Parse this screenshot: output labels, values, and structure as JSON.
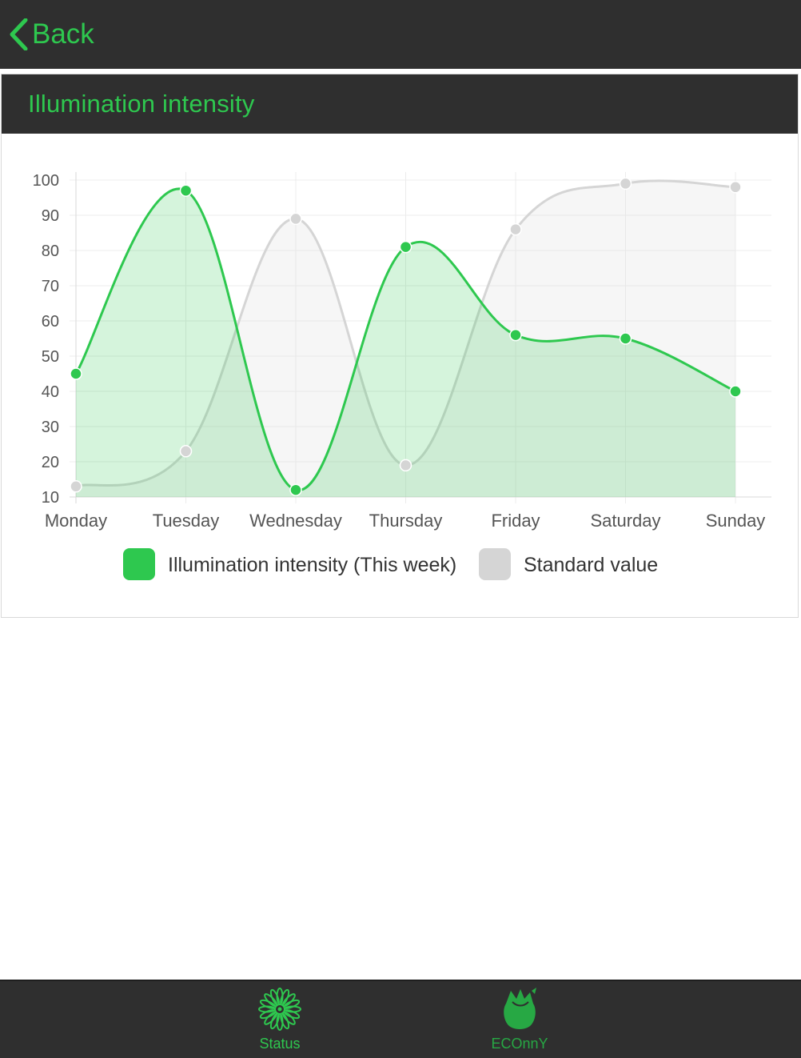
{
  "nav": {
    "back_label": "Back",
    "back_icon": "chevron-left-icon"
  },
  "card": {
    "title": "Illumination intensity"
  },
  "chart_data": {
    "type": "line",
    "smooth": true,
    "filled": true,
    "categories": [
      "Monday",
      "Tuesday",
      "Wednesday",
      "Thursday",
      "Friday",
      "Saturday",
      "Sunday"
    ],
    "series": [
      {
        "name": "Illumination intensity (This week)",
        "values": [
          45,
          97,
          12,
          81,
          56,
          55,
          40
        ],
        "color": "#2ec84f",
        "fill": "rgba(46,200,79,0.2)"
      },
      {
        "name": "Standard value",
        "values": [
          13,
          23,
          89,
          19,
          86,
          99,
          98
        ],
        "color": "#d5d5d5",
        "fill": "rgba(220,220,220,0.25)"
      }
    ],
    "ylim": [
      10,
      100
    ],
    "yticks": [
      100,
      90,
      80,
      70,
      60,
      50,
      40,
      30,
      20,
      10
    ],
    "grid": true,
    "legend": "bottom-center"
  },
  "tabs": [
    {
      "label": "Status",
      "icon": "flower-icon"
    },
    {
      "label": "ECOnnY",
      "icon": "rose-bud-icon"
    }
  ],
  "colors": {
    "accent": "#2ec84f",
    "bar_background": "#2f2f2f",
    "standard_series": "#d5d5d5"
  }
}
